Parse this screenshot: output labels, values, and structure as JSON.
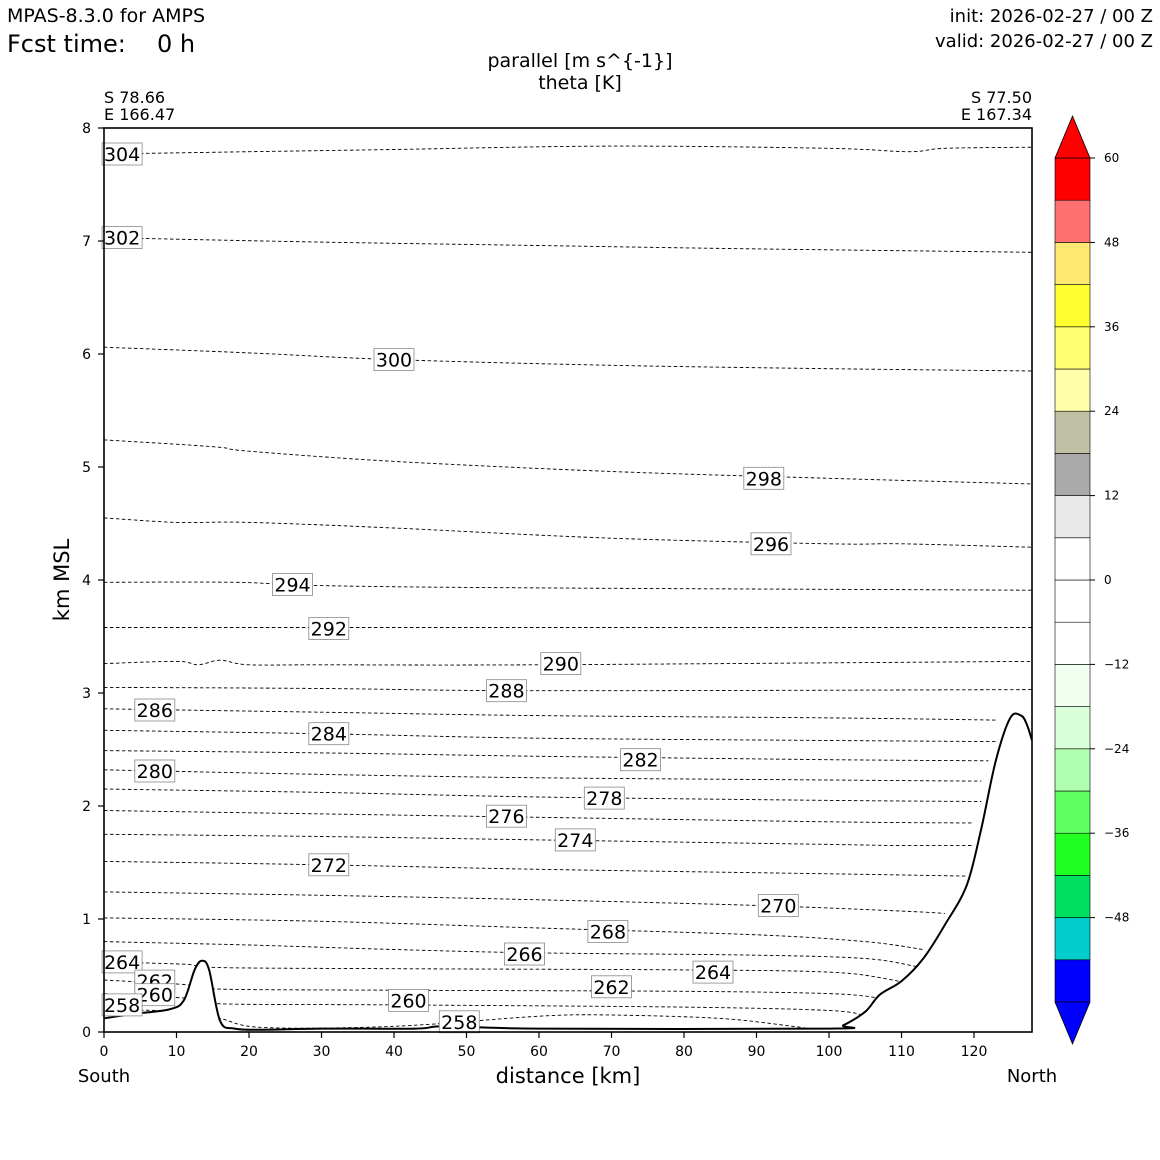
{
  "header": {
    "model": "MPAS-8.3.0 for AMPS",
    "fcst_label": "Fcst time:",
    "fcst_value": "0 h",
    "init": "init: 2026-02-27 / 00 Z",
    "valid": "valid: 2026-02-27 / 00 Z"
  },
  "chart_data": {
    "type": "contour",
    "title_line1": "parallel [m s^{-1}]",
    "title_line2": "theta [K]",
    "xlabel": "distance [km]",
    "ylabel": "km MSL",
    "xlim": [
      0,
      128
    ],
    "ylim": [
      0,
      8
    ],
    "xticks": [
      "0",
      "10",
      "20",
      "30",
      "40",
      "50",
      "60",
      "70",
      "80",
      "90",
      "100",
      "110",
      "120"
    ],
    "yticks": [
      "0",
      "1",
      "2",
      "3",
      "4",
      "5",
      "6",
      "7",
      "8"
    ],
    "left_end": {
      "label": "South",
      "lat": "S 78.66",
      "lon": "E 166.47"
    },
    "right_end": {
      "label": "North",
      "lat": "S 77.50",
      "lon": "E 167.34"
    },
    "terrain": [
      [
        0,
        0.12
      ],
      [
        4,
        0.16
      ],
      [
        9,
        0.2
      ],
      [
        11,
        0.28
      ],
      [
        12.5,
        0.55
      ],
      [
        13.5,
        0.63
      ],
      [
        14.5,
        0.55
      ],
      [
        16,
        0.1
      ],
      [
        18,
        0.03
      ],
      [
        22,
        0.02
      ],
      [
        30,
        0.03
      ],
      [
        43,
        0.03
      ],
      [
        47,
        0.05
      ],
      [
        60,
        0.03
      ],
      [
        100,
        0.03
      ],
      [
        102,
        0.06
      ],
      [
        105,
        0.18
      ],
      [
        107,
        0.33
      ],
      [
        110,
        0.45
      ],
      [
        113,
        0.65
      ],
      [
        116,
        0.95
      ],
      [
        119,
        1.3
      ],
      [
        121,
        1.8
      ],
      [
        123,
        2.4
      ],
      [
        125,
        2.78
      ],
      [
        126.5,
        2.8
      ],
      [
        127.3,
        2.72
      ],
      [
        128,
        2.58
      ]
    ],
    "theta_contours": [
      {
        "value": "304",
        "label_at": [
          2.5,
          7.77
        ],
        "points": [
          [
            0,
            7.77
          ],
          [
            20,
            7.79
          ],
          [
            40,
            7.81
          ],
          [
            70,
            7.84
          ],
          [
            100,
            7.82
          ],
          [
            111,
            7.79
          ],
          [
            116,
            7.82
          ],
          [
            128,
            7.83
          ]
        ]
      },
      {
        "value": "302",
        "label_at": [
          2.5,
          7.03
        ],
        "points": [
          [
            0,
            7.03
          ],
          [
            30,
            6.99
          ],
          [
            60,
            6.96
          ],
          [
            90,
            6.93
          ],
          [
            128,
            6.9
          ]
        ]
      },
      {
        "value": "300",
        "label_at": [
          40,
          5.95
        ],
        "points": [
          [
            0,
            6.06
          ],
          [
            20,
            6.01
          ],
          [
            40,
            5.95
          ],
          [
            70,
            5.9
          ],
          [
            100,
            5.87
          ],
          [
            128,
            5.85
          ]
        ]
      },
      {
        "value": "298",
        "label_at": [
          91,
          4.9
        ],
        "points": [
          [
            0,
            5.24
          ],
          [
            15,
            5.18
          ],
          [
            20,
            5.14
          ],
          [
            40,
            5.05
          ],
          [
            70,
            4.96
          ],
          [
            100,
            4.9
          ],
          [
            128,
            4.85
          ]
        ]
      },
      {
        "value": "296",
        "label_at": [
          92,
          4.32
        ],
        "points": [
          [
            0,
            4.55
          ],
          [
            10,
            4.51
          ],
          [
            20,
            4.51
          ],
          [
            40,
            4.46
          ],
          [
            70,
            4.37
          ],
          [
            100,
            4.32
          ],
          [
            110,
            4.32
          ],
          [
            128,
            4.29
          ]
        ]
      },
      {
        "value": "294",
        "label_at": [
          26,
          3.96
        ],
        "points": [
          [
            0,
            3.98
          ],
          [
            18,
            3.98
          ],
          [
            30,
            3.95
          ],
          [
            60,
            3.93
          ],
          [
            128,
            3.91
          ]
        ]
      },
      {
        "value": "292",
        "label_at": [
          31,
          3.57
        ],
        "points": [
          [
            0,
            3.58
          ],
          [
            128,
            3.58
          ]
        ]
      },
      {
        "value": "290",
        "label_at": [
          63,
          3.26
        ],
        "points": [
          [
            0,
            3.26
          ],
          [
            10,
            3.28
          ],
          [
            13,
            3.25
          ],
          [
            16,
            3.29
          ],
          [
            20,
            3.25
          ],
          [
            30,
            3.25
          ],
          [
            60,
            3.25
          ],
          [
            128,
            3.28
          ]
        ]
      },
      {
        "value": "288",
        "label_at": [
          55.5,
          3.02
        ],
        "points": [
          [
            0,
            3.05
          ],
          [
            30,
            3.04
          ],
          [
            60,
            3.02
          ],
          [
            128,
            3.03
          ]
        ]
      },
      {
        "value": "286",
        "label_at": [
          7,
          2.85
        ],
        "points": [
          [
            0,
            2.86
          ],
          [
            30,
            2.83
          ],
          [
            60,
            2.8
          ],
          [
            100,
            2.78
          ],
          [
            123,
            2.76
          ]
        ]
      },
      {
        "value": "284",
        "label_at": [
          31,
          2.64
        ],
        "points": [
          [
            0,
            2.67
          ],
          [
            30,
            2.64
          ],
          [
            60,
            2.6
          ],
          [
            100,
            2.58
          ],
          [
            123,
            2.57
          ]
        ]
      },
      {
        "value": "282",
        "label_at": [
          74,
          2.41
        ],
        "points": [
          [
            0,
            2.49
          ],
          [
            30,
            2.47
          ],
          [
            60,
            2.44
          ],
          [
            100,
            2.41
          ],
          [
            122,
            2.4
          ]
        ]
      },
      {
        "value": "280",
        "label_at": [
          7,
          2.31
        ],
        "points": [
          [
            0,
            2.32
          ],
          [
            30,
            2.28
          ],
          [
            60,
            2.25
          ],
          [
            100,
            2.23
          ],
          [
            121,
            2.22
          ]
        ]
      },
      {
        "value": "278",
        "label_at": [
          69,
          2.07
        ],
        "points": [
          [
            0,
            2.15
          ],
          [
            30,
            2.12
          ],
          [
            60,
            2.08
          ],
          [
            100,
            2.05
          ],
          [
            121,
            2.04
          ]
        ]
      },
      {
        "value": "276",
        "label_at": [
          55.5,
          1.91
        ],
        "points": [
          [
            0,
            1.96
          ],
          [
            30,
            1.93
          ],
          [
            60,
            1.9
          ],
          [
            100,
            1.86
          ],
          [
            120,
            1.85
          ]
        ]
      },
      {
        "value": "274",
        "label_at": [
          65,
          1.7
        ],
        "points": [
          [
            0,
            1.75
          ],
          [
            30,
            1.73
          ],
          [
            60,
            1.7
          ],
          [
            100,
            1.66
          ],
          [
            110,
            1.65
          ],
          [
            120,
            1.65
          ]
        ]
      },
      {
        "value": "272",
        "label_at": [
          31,
          1.48
        ],
        "points": [
          [
            0,
            1.51
          ],
          [
            30,
            1.48
          ],
          [
            60,
            1.44
          ],
          [
            100,
            1.4
          ],
          [
            119,
            1.38
          ]
        ]
      },
      {
        "value": "270",
        "label_at": [
          93,
          1.12
        ],
        "points": [
          [
            0,
            1.24
          ],
          [
            30,
            1.21
          ],
          [
            60,
            1.17
          ],
          [
            90,
            1.12
          ],
          [
            110,
            1.07
          ],
          [
            116,
            1.05
          ]
        ]
      },
      {
        "value": "268",
        "label_at": [
          69.5,
          0.89
        ],
        "points": [
          [
            0,
            1.01
          ],
          [
            30,
            0.98
          ],
          [
            60,
            0.92
          ],
          [
            90,
            0.86
          ],
          [
            105,
            0.8
          ],
          [
            113,
            0.73
          ]
        ]
      },
      {
        "value": "266",
        "label_at": [
          58,
          0.69
        ],
        "points": [
          [
            0,
            0.8
          ],
          [
            20,
            0.77
          ],
          [
            40,
            0.73
          ],
          [
            60,
            0.7
          ],
          [
            90,
            0.68
          ],
          [
            105,
            0.65
          ],
          [
            112,
            0.58
          ]
        ]
      },
      {
        "value": "264",
        "label_at": [
          2.5,
          0.62
        ],
        "points": [
          [
            0,
            0.62
          ],
          [
            11,
            0.6
          ],
          [
            16,
            0.57
          ],
          [
            40,
            0.56
          ],
          [
            80,
            0.55
          ],
          [
            100,
            0.53
          ],
          [
            108,
            0.47
          ],
          [
            111,
            0.42
          ]
        ]
      },
      {
        "value": "262",
        "label_at": [
          7,
          0.45
        ],
        "points": [
          [
            0,
            0.46
          ],
          [
            11,
            0.42
          ],
          [
            16,
            0.38
          ],
          [
            40,
            0.37
          ],
          [
            80,
            0.36
          ],
          [
            100,
            0.34
          ],
          [
            107,
            0.3
          ],
          [
            109,
            0.27
          ]
        ]
      },
      {
        "value": "260",
        "label_at": [
          7,
          0.33
        ],
        "points": [
          [
            0,
            0.34
          ],
          [
            11,
            0.3
          ],
          [
            16,
            0.25
          ],
          [
            40,
            0.24
          ],
          [
            80,
            0.22
          ],
          [
            100,
            0.19
          ],
          [
            105,
            0.14
          ],
          [
            106,
            0.1
          ]
        ]
      },
      {
        "value": "258",
        "label_at": [
          2.5,
          0.24
        ],
        "points": [
          [
            0,
            0.2
          ],
          [
            11,
            0.18
          ],
          [
            16,
            0.12
          ],
          [
            22,
            0.04
          ],
          [
            40,
            0.05
          ],
          [
            60,
            0.14
          ],
          [
            70,
            0.15
          ],
          [
            85,
            0.12
          ],
          [
            95,
            0.05
          ],
          [
            97,
            0.03
          ]
        ]
      }
    ],
    "extra_labels": [
      {
        "value": "262",
        "label_at": [
          70,
          0.4
        ]
      },
      {
        "value": "264",
        "label_at": [
          84,
          0.53
        ]
      },
      {
        "value": "260",
        "label_at": [
          42,
          0.28
        ]
      },
      {
        "value": "258",
        "label_at": [
          49,
          0.09
        ]
      }
    ],
    "colorbar": {
      "ticks": [
        "60",
        "48",
        "36",
        "24",
        "12",
        "0",
        "−12",
        "−24",
        "−36",
        "−48"
      ],
      "tick_values": [
        60,
        48,
        36,
        24,
        12,
        0,
        -12,
        -24,
        -36,
        -48
      ],
      "levels": [
        -60,
        -54,
        -48,
        -42,
        -36,
        -30,
        -24,
        -18,
        -12,
        -6,
        0,
        6,
        12,
        18,
        24,
        30,
        36,
        42,
        48,
        54,
        60
      ],
      "colors": [
        "#0000ff",
        "#00cccc",
        "#00e060",
        "#20ff20",
        "#60ff60",
        "#b0ffb0",
        "#d8ffd8",
        "#f0fff0",
        "#ffffff",
        "#ffffff",
        "#ffffff",
        "#e8e8e8",
        "#aaaaaa",
        "#c0c0a4",
        "#ffffaa",
        "#ffff70",
        "#ffff30",
        "#ffe870",
        "#ff7070",
        "#ff0000"
      ],
      "under_color": "#0000ff",
      "over_color": "#ff0000"
    }
  }
}
